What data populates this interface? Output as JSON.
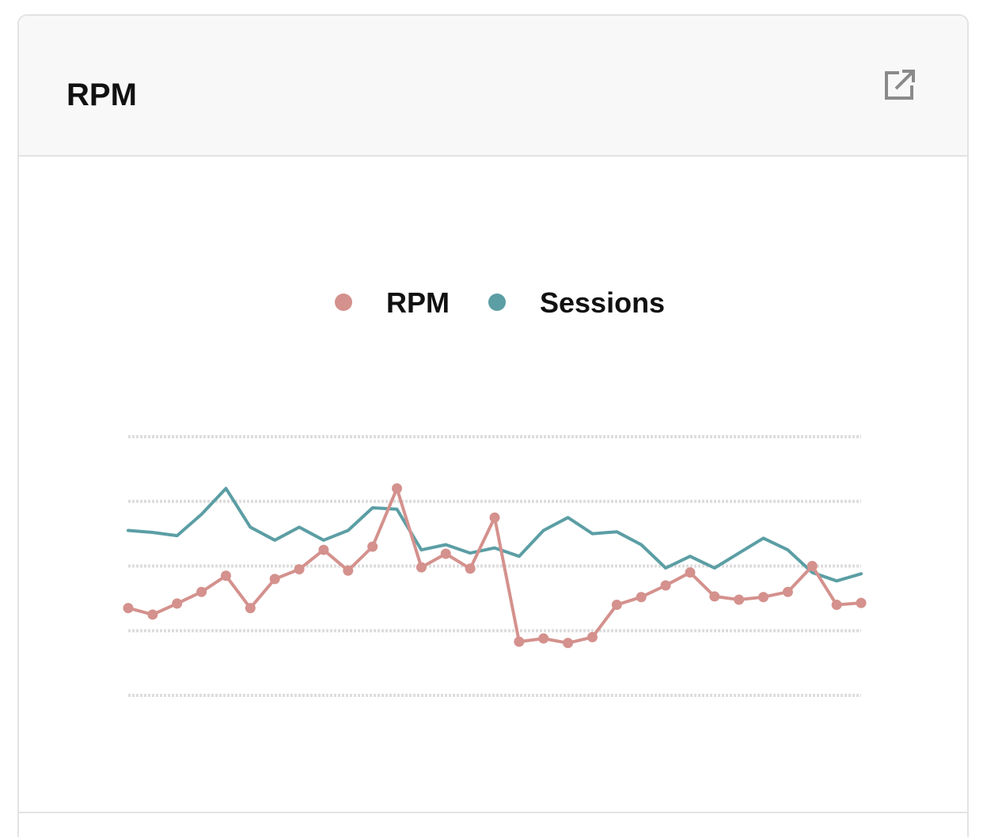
{
  "card": {
    "title": "RPM",
    "expand_icon": "open-in-new-icon"
  },
  "colors": {
    "rpm": "#d4918d",
    "sessions": "#5b9ea4",
    "grid": "#dddddd",
    "header_bg": "#f8f8f8",
    "border": "#e3e3e3"
  },
  "chart_data": {
    "type": "line",
    "legend": {
      "position": "top-center",
      "entries": [
        "RPM",
        "Sessions"
      ]
    },
    "grid": true,
    "ylim": [
      0,
      4
    ],
    "gridlines": [
      0,
      1,
      2,
      3,
      4
    ],
    "x": [
      1,
      2,
      3,
      4,
      5,
      6,
      7,
      8,
      9,
      10,
      11,
      12,
      13,
      14,
      15,
      16,
      17,
      18,
      19,
      20,
      21,
      22,
      23,
      24,
      25,
      26,
      27,
      28,
      29,
      30,
      31
    ],
    "series": [
      {
        "name": "RPM",
        "markers": true,
        "values": [
          1.35,
          1.25,
          1.42,
          1.6,
          1.85,
          1.35,
          1.8,
          1.95,
          2.25,
          1.93,
          2.3,
          3.2,
          1.98,
          2.19,
          1.96,
          2.75,
          0.83,
          0.88,
          0.81,
          0.9,
          1.4,
          1.52,
          1.7,
          1.9,
          1.53,
          1.48,
          1.52,
          1.6,
          2.0,
          1.4,
          1.43
        ]
      },
      {
        "name": "Sessions",
        "markers": false,
        "values": [
          2.55,
          2.52,
          2.47,
          2.8,
          3.2,
          2.6,
          2.4,
          2.6,
          2.4,
          2.55,
          2.9,
          2.88,
          2.25,
          2.33,
          2.2,
          2.28,
          2.15,
          2.55,
          2.75,
          2.5,
          2.53,
          2.33,
          1.97,
          2.15,
          1.97,
          2.2,
          2.43,
          2.25,
          1.9,
          1.77,
          1.88
        ]
      }
    ]
  }
}
